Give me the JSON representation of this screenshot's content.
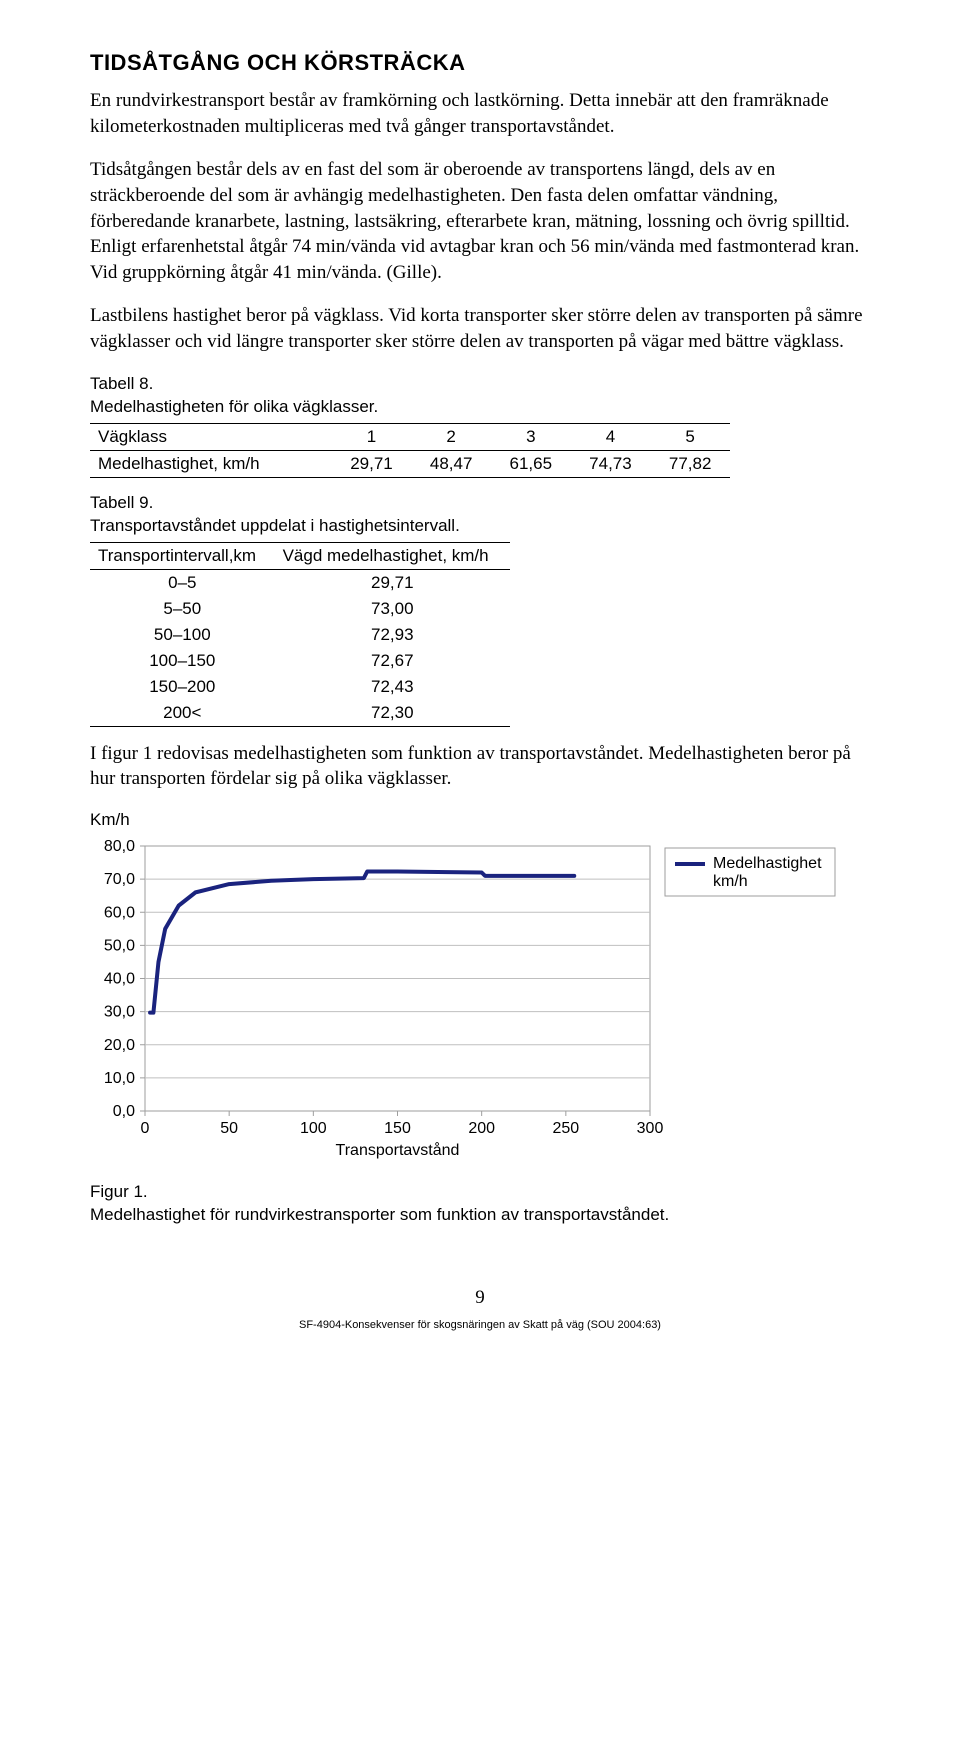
{
  "heading": "TIDSÅTGÅNG OCH KÖRSTRÄCKA",
  "p1": "En rundvirkestransport består av framkörning och lastkörning. Detta innebär att den framräknade kilometerkostnaden multipliceras med två gånger transportavståndet.",
  "p2": "Tidsåtgången består dels av en fast del som är oberoende av transportens längd, dels av en sträckberoende del som är avhängig medelhastigheten. Den fasta delen omfattar vändning, förberedande kranarbete, lastning, lastsäkring, efterarbete kran, mätning, lossning och övrig spilltid. Enligt erfarenhetstal åtgår 74 min/vända vid avtagbar kran och 56 min/vända med fastmonterad kran. Vid gruppkörning åtgår 41 min/vända. (Gille).",
  "p3": "Lastbilens hastighet beror på vägklass. Vid korta transporter sker större delen av transporten på sämre vägklasser och vid längre transporter sker större delen av transporten på vägar med bättre vägklass.",
  "t8": {
    "caption1": "Tabell 8.",
    "caption2": "Medelhastigheten för olika vägklasser.",
    "h0": "Vägklass",
    "c1": "1",
    "c2": "2",
    "c3": "3",
    "c4": "4",
    "c5": "5",
    "r0": "Medelhastighet, km/h",
    "v1": "29,71",
    "v2": "48,47",
    "v3": "61,65",
    "v4": "74,73",
    "v5": "77,82"
  },
  "t9": {
    "caption1": "Tabell 9.",
    "caption2": "Transportavståndet uppdelat i hastighetsintervall.",
    "h0": "Transportintervall,km",
    "h1": "Vägd medelhastighet, km/h",
    "rows": [
      {
        "a": "0–5",
        "b": "29,71"
      },
      {
        "a": "5–50",
        "b": "73,00"
      },
      {
        "a": "50–100",
        "b": "72,93"
      },
      {
        "a": "100–150",
        "b": "72,67"
      },
      {
        "a": "150–200",
        "b": "72,43"
      },
      {
        "a": "200<",
        "b": "72,30"
      }
    ]
  },
  "p4": "I figur 1 redovisas medelhastigheten som funktion av transportavståndet. Medelhastigheten beror på hur transporten fördelar sig på olika vägklasser.",
  "chart": {
    "type": "line",
    "ylabel": "Km/h",
    "xlabel": "Transportavstånd",
    "legend1": "Medelhastighet",
    "legend2": "km/h",
    "x_ticks": [
      0,
      50,
      100,
      150,
      200,
      250,
      300
    ],
    "y_ticks": [
      "0,0",
      "10,0",
      "20,0",
      "30,0",
      "40,0",
      "50,0",
      "60,0",
      "70,0",
      "80,0"
    ],
    "y_numeric": [
      0,
      10,
      20,
      30,
      40,
      50,
      60,
      70,
      80
    ],
    "xlim": [
      0,
      300
    ],
    "ylim": [
      0,
      80
    ],
    "line_color": "#1a237e",
    "line_width": 4,
    "grid_color": "#bfbfbf",
    "axis_color": "#9e9e9e",
    "background_color": "#ffffff",
    "tick_fontsize": 16,
    "legend_fontsize": 16,
    "series": [
      {
        "x": 3,
        "y": 29.7
      },
      {
        "x": 5,
        "y": 29.7
      },
      {
        "x": 8,
        "y": 45
      },
      {
        "x": 12,
        "y": 55
      },
      {
        "x": 20,
        "y": 62
      },
      {
        "x": 30,
        "y": 66
      },
      {
        "x": 50,
        "y": 68.5
      },
      {
        "x": 75,
        "y": 69.5
      },
      {
        "x": 100,
        "y": 70
      },
      {
        "x": 130,
        "y": 70.3
      },
      {
        "x": 132,
        "y": 72.3
      },
      {
        "x": 150,
        "y": 72.3
      },
      {
        "x": 180,
        "y": 72.1
      },
      {
        "x": 200,
        "y": 72.0
      },
      {
        "x": 202,
        "y": 71.0
      },
      {
        "x": 230,
        "y": 71.0
      },
      {
        "x": 255,
        "y": 71.0
      }
    ]
  },
  "fig": {
    "caption1": "Figur 1.",
    "caption2": "Medelhastighet för rundvirkestransporter som funktion av transportavståndet."
  },
  "footer": {
    "page": "9",
    "sub": "SF-4904-Konsekvenser för skogsnäringen av Skatt på väg (SOU 2004:63)"
  }
}
